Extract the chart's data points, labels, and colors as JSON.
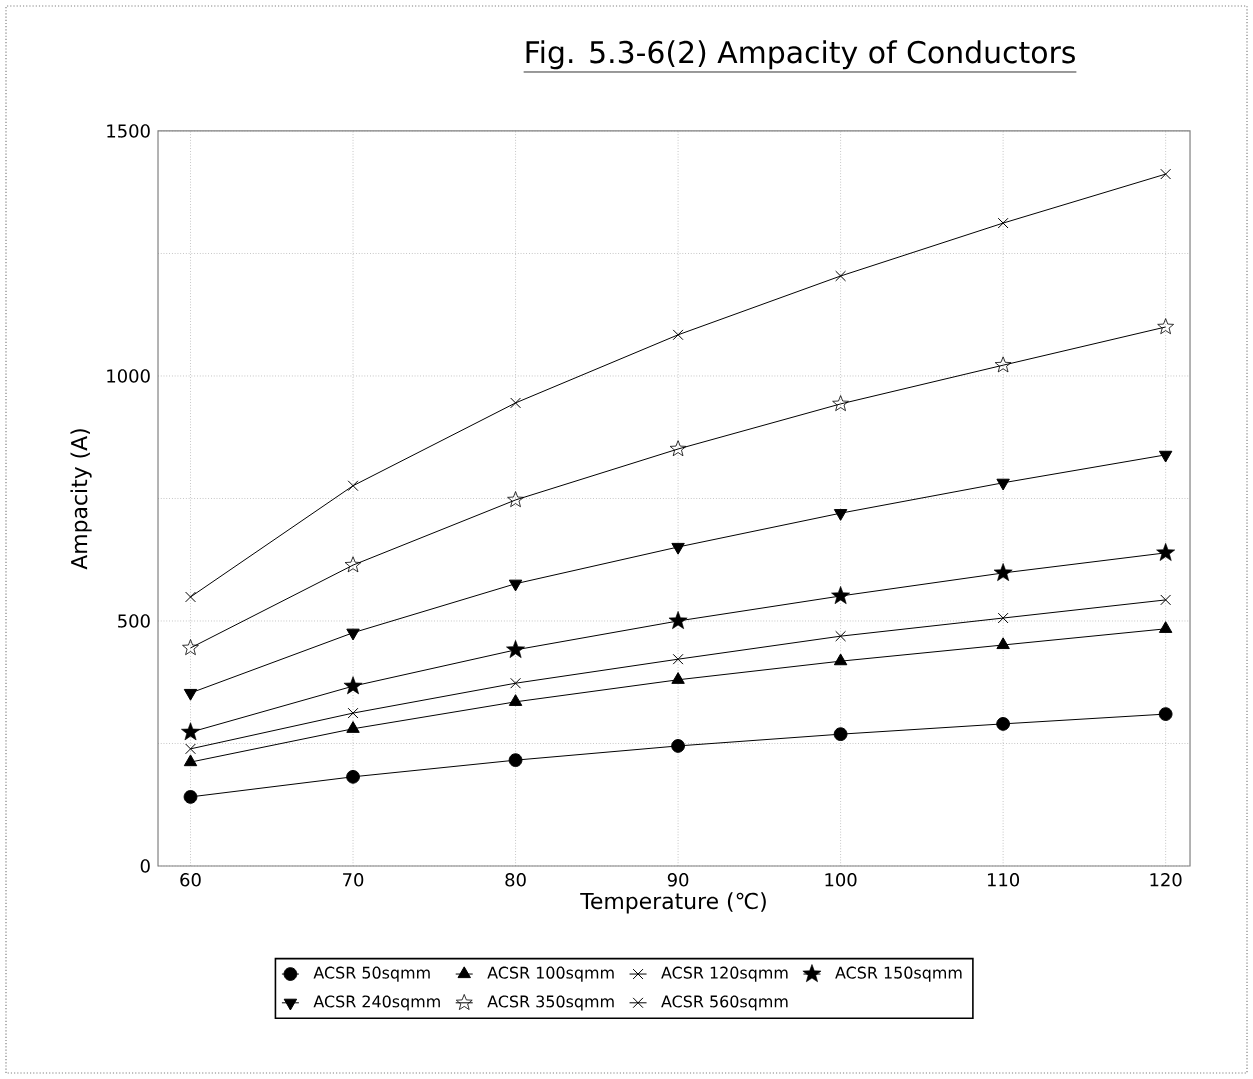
{
  "chart_data": {
    "type": "line",
    "title": "Fig. 5.3-6(2)  Ampacity of Conductors",
    "xlabel": "Temperature (℃)",
    "ylabel": "Ampacity (A)",
    "x": [
      60,
      70,
      80,
      90,
      100,
      110,
      120
    ],
    "xlim": [
      58,
      121.5
    ],
    "xticks": [
      60,
      70,
      80,
      90,
      100,
      110,
      120
    ],
    "ylim": [
      0,
      1500
    ],
    "yticks": [
      0,
      {
        "value": 250,
        "label": null
      },
      500,
      {
        "value": 750,
        "label": null
      },
      1000,
      {
        "value": 1250,
        "label": null
      },
      1500
    ],
    "grid": true,
    "legend": "bottom",
    "line_style": "solid",
    "series": [
      {
        "name": "ACSR  50sqmm",
        "color": "#000000",
        "marker": "circle",
        "values": [
          141,
          182,
          216,
          245,
          269,
          290,
          310
        ]
      },
      {
        "name": "ACSR  100sqmm",
        "color": "#000000",
        "marker": "triangle",
        "values": [
          212,
          280,
          335,
          380,
          418,
          451,
          484
        ]
      },
      {
        "name": "ACSR  120sqmm",
        "color": "#000000",
        "marker": "cross",
        "values": [
          239,
          312,
          373,
          422,
          469,
          506,
          543
        ]
      },
      {
        "name": "ACSR  150sqmm",
        "color": "#000000",
        "marker": "star",
        "values": [
          273,
          367,
          441,
          500,
          551,
          598,
          639
        ]
      },
      {
        "name": "ACSR  240sqmm",
        "color": "#000000",
        "marker": "triangle-down",
        "values": [
          353,
          476,
          576,
          651,
          720,
          782,
          839
        ]
      },
      {
        "name": "ACSR  350sqmm",
        "color": "#000000",
        "marker": "star-open",
        "values": [
          445,
          614,
          747,
          851,
          943,
          1022,
          1100
        ]
      },
      {
        "name": "ACSR  560sqmm",
        "color": "#000000",
        "marker": "cross",
        "values": [
          549,
          776,
          945,
          1084,
          1204,
          1312,
          1412
        ]
      }
    ]
  }
}
